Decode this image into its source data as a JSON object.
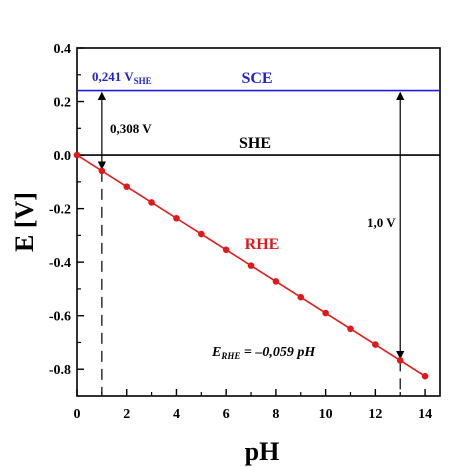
{
  "chart_data": {
    "type": "line",
    "xlabel": "pH",
    "ylabel": "E [V]",
    "xlim": [
      0,
      14.6
    ],
    "ylim": [
      -0.9,
      0.4
    ],
    "xticks": [
      "0",
      "2",
      "4",
      "6",
      "8",
      "10",
      "12",
      "14"
    ],
    "yticks": [
      "0.4",
      "0.2",
      "0.0",
      "-0.2",
      "-0.4",
      "-0.6",
      "-0.8"
    ],
    "grid": false,
    "series": [
      {
        "name": "SCE",
        "color": "#1f1fd6",
        "x": [
          0,
          14.6
        ],
        "y": [
          0.241,
          0.241
        ]
      },
      {
        "name": "SHE",
        "color": "#000000",
        "x": [
          0,
          14.6
        ],
        "y": [
          0.0,
          0.0
        ]
      },
      {
        "name": "RHE",
        "color": "#e01a1a",
        "markers": true,
        "x": [
          0,
          1,
          2,
          3,
          4,
          5,
          6,
          7,
          8,
          9,
          10,
          11,
          12,
          13,
          14
        ],
        "y": [
          0,
          -0.059,
          -0.118,
          -0.177,
          -0.236,
          -0.295,
          -0.354,
          -0.413,
          -0.472,
          -0.531,
          -0.59,
          -0.649,
          -0.708,
          -0.767,
          -0.826
        ]
      }
    ],
    "annotations": {
      "sce_value_main": "0,241 V",
      "sce_value_sub": "SHE",
      "sce_label": "SCE",
      "she_label": "SHE",
      "rhe_label": "RHE",
      "gap_label": "0,308 V",
      "span_label": "1,0 V",
      "equation_lhs_main": "E",
      "equation_lhs_sub": "RHE",
      "equation_rhs": " = –0,059 pH"
    }
  }
}
